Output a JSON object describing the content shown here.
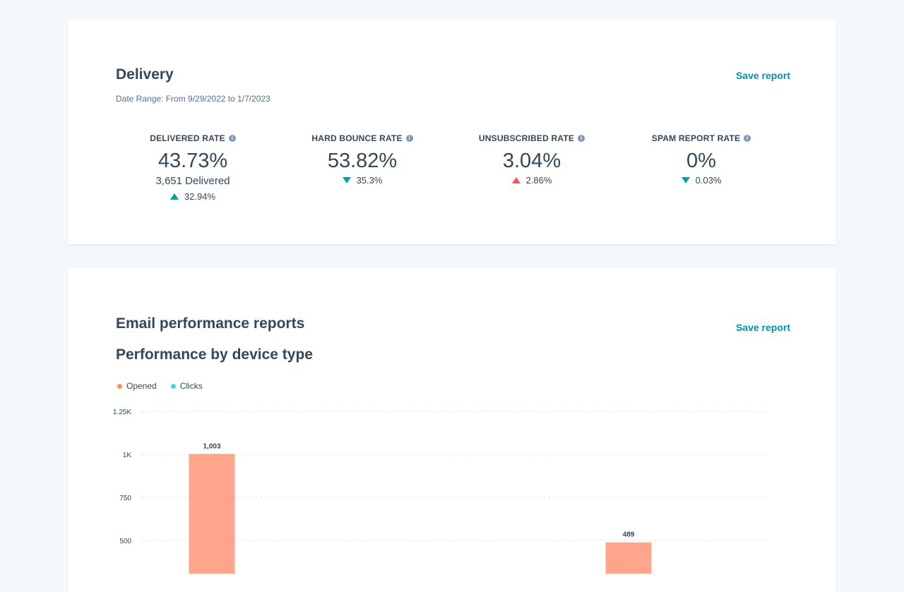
{
  "delivery": {
    "title": "Delivery",
    "save_label": "Save report",
    "date_range": "Date Range: From 9/29/2022 to 1/7/2023",
    "metrics": [
      {
        "label": "DELIVERED RATE",
        "value": "43.73%",
        "sub": "3,651 Delivered",
        "change": "32.94%",
        "trend": "up",
        "trend_color": "#00a4a0"
      },
      {
        "label": "HARD BOUNCE RATE",
        "value": "53.82%",
        "change": "35.3%",
        "trend": "down",
        "trend_color": "#00a4a0"
      },
      {
        "label": "UNSUBSCRIBED RATE",
        "value": "3.04%",
        "change": "2.86%",
        "trend": "up",
        "trend_color": "#f2545b"
      },
      {
        "label": "SPAM REPORT RATE",
        "value": "0%",
        "change": "0.03%",
        "trend": "down",
        "trend_color": "#00a4a0"
      }
    ],
    "info_icon": "i"
  },
  "email_reports": {
    "title": "Email performance reports",
    "save_label": "Save report",
    "subtitle": "Performance by device type",
    "legend": [
      {
        "name": "Opened",
        "color": "#ff8f59"
      },
      {
        "name": "Clicks",
        "color": "#51d3d9"
      }
    ]
  },
  "chart_data": {
    "type": "bar",
    "series": [
      {
        "name": "Opened",
        "color": "#ffa58c",
        "values": [
          1003,
          489
        ]
      }
    ],
    "data_labels": [
      "1,003",
      "489"
    ],
    "y_ticks": [
      {
        "value": 1250,
        "label": "1.25K"
      },
      {
        "value": 1000,
        "label": "1K"
      },
      {
        "value": 750,
        "label": "750"
      },
      {
        "value": 500,
        "label": "500"
      }
    ],
    "ylim": [
      0,
      1250
    ],
    "grid": true,
    "legend_position": "top-left"
  },
  "colors": {
    "accent": "#0091ae",
    "text": "#33475b",
    "positive": "#00a4a0",
    "negative": "#f2545b",
    "opened": "#ffa58c",
    "clicks": "#51d3d9"
  }
}
